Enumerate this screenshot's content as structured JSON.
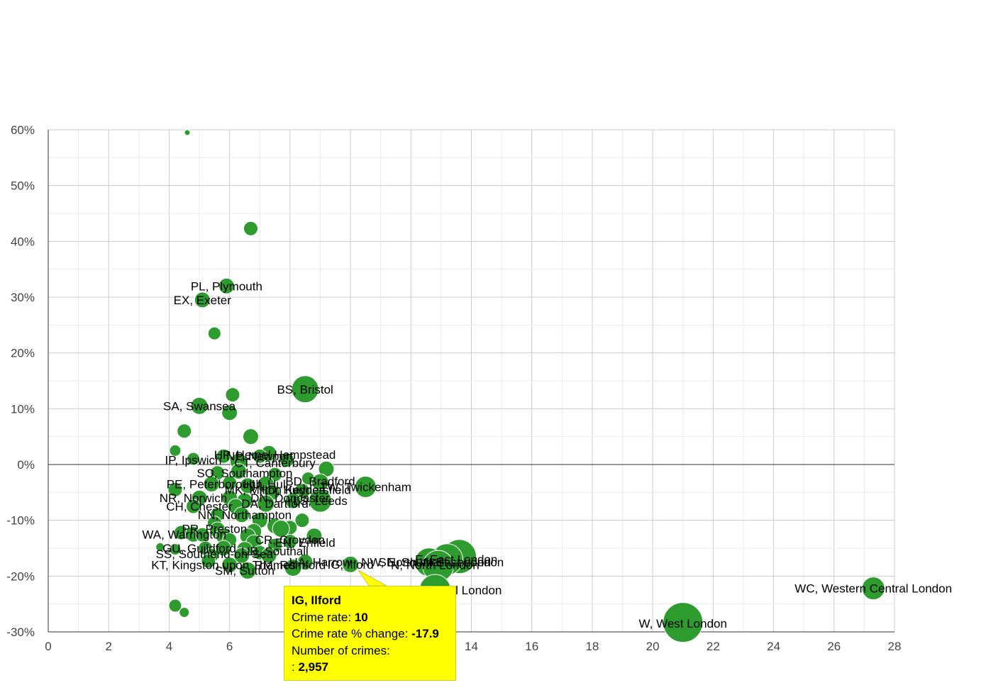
{
  "chart_data": {
    "type": "scatter",
    "title": "",
    "xlabel": "",
    "ylabel": "",
    "xlim": [
      0,
      28
    ],
    "ylim": [
      -30,
      60
    ],
    "x_ticks": [
      "0",
      "2",
      "4",
      "6",
      "8",
      "10",
      "12",
      "14",
      "16",
      "18",
      "20",
      "22",
      "24",
      "26",
      "28"
    ],
    "y_ticks": [
      "60%",
      "50%",
      "40%",
      "30%",
      "20%",
      "10%",
      "0%",
      "-10%",
      "-20%",
      "-30%"
    ],
    "bubble_color": "#2e9b2e",
    "labels": [
      {
        "text": "PL, Plymouth",
        "x": 5.9,
        "y": 32.0
      },
      {
        "text": "EX, Exeter",
        "x": 5.1,
        "y": 29.5
      },
      {
        "text": "BS, Bristol",
        "x": 8.5,
        "y": 13.5
      },
      {
        "text": "SA, Swansea",
        "x": 5.0,
        "y": 10.5
      },
      {
        "text": "HP, Hemel Hempstead",
        "x": 7.5,
        "y": 1.8
      },
      {
        "text": "NP, Newport",
        "x": 7.0,
        "y": 1.5
      },
      {
        "text": "IP, Ipswich",
        "x": 4.8,
        "y": 0.8
      },
      {
        "text": "CT, Canterbury",
        "x": 7.5,
        "y": 0.3
      },
      {
        "text": "SO, Southampton",
        "x": 6.5,
        "y": -1.5
      },
      {
        "text": "BD, Bradford",
        "x": 9.0,
        "y": -3.0
      },
      {
        "text": "PE, Peterborough",
        "x": 5.5,
        "y": -3.5
      },
      {
        "text": "HU, Hull",
        "x": 7.2,
        "y": -3.5
      },
      {
        "text": "MK, Milton Keynes",
        "x": 7.5,
        "y": -4.5
      },
      {
        "text": "TW, Twickenham",
        "x": 10.5,
        "y": -4.0
      },
      {
        "text": "HD, Huddersfield",
        "x": 8.5,
        "y": -4.5
      },
      {
        "text": "NR, Norwich",
        "x": 4.8,
        "y": -6.0
      },
      {
        "text": "CH, Chester",
        "x": 5.0,
        "y": -7.5
      },
      {
        "text": "DA, Dartford",
        "x": 7.5,
        "y": -7.0
      },
      {
        "text": "LS, Leeds",
        "x": 9.0,
        "y": -6.5
      },
      {
        "text": "DN, Doncaster",
        "x": 8.0,
        "y": -6.0
      },
      {
        "text": "NN, Northampton",
        "x": 6.5,
        "y": -9.0
      },
      {
        "text": "PR, Preston",
        "x": 5.5,
        "y": -11.5
      },
      {
        "text": "WA, Warrington",
        "x": 4.5,
        "y": -12.5
      },
      {
        "text": "CR, Croydon",
        "x": 8.0,
        "y": -13.5
      },
      {
        "text": "EN, Enfield",
        "x": 8.5,
        "y": -14.0
      },
      {
        "text": "GU, Guildford",
        "x": 5.0,
        "y": -15.0
      },
      {
        "text": "UB, Southall",
        "x": 7.5,
        "y": -15.5
      },
      {
        "text": "SS, Southend-on-Sea",
        "x": 5.5,
        "y": -16.0
      },
      {
        "text": "E, East London",
        "x": 13.5,
        "y": -17.0
      },
      {
        "text": "NW, North West London",
        "x": 12.5,
        "y": -17.5
      },
      {
        "text": "SE, South East London",
        "x": 13.0,
        "y": -17.5
      },
      {
        "text": "N, North London",
        "x": 12.8,
        "y": -18.0
      },
      {
        "text": "RM, Romford",
        "x": 8.0,
        "y": -18.0
      },
      {
        "text": "HA, Harrow",
        "x": 9.0,
        "y": -17.5
      },
      {
        "text": "IG, Ilford",
        "x": 10.0,
        "y": -17.9
      },
      {
        "text": "KT, Kingston upon Thames",
        "x": 5.8,
        "y": -18.0
      },
      {
        "text": "SM, Sutton",
        "x": 6.5,
        "y": -19.0
      },
      {
        "text": "EC, East Central London",
        "x": 12.8,
        "y": -22.5
      },
      {
        "text": "WC, Western Central London",
        "x": 27.3,
        "y": -22.2
      },
      {
        "text": "W, West London",
        "x": 21.0,
        "y": -28.5
      }
    ],
    "bubbles": [
      {
        "x": 4.6,
        "y": 59.5,
        "r": 4
      },
      {
        "x": 6.7,
        "y": 42.3,
        "r": 10
      },
      {
        "x": 5.9,
        "y": 32.0,
        "r": 11
      },
      {
        "x": 5.1,
        "y": 29.5,
        "r": 11
      },
      {
        "x": 5.5,
        "y": 23.5,
        "r": 9
      },
      {
        "x": 8.5,
        "y": 13.5,
        "r": 19
      },
      {
        "x": 6.1,
        "y": 12.5,
        "r": 10
      },
      {
        "x": 5.0,
        "y": 10.5,
        "r": 12
      },
      {
        "x": 6.0,
        "y": 9.3,
        "r": 11
      },
      {
        "x": 4.5,
        "y": 6.0,
        "r": 10
      },
      {
        "x": 6.7,
        "y": 5.0,
        "r": 11
      },
      {
        "x": 4.2,
        "y": 2.5,
        "r": 8
      },
      {
        "x": 4.8,
        "y": 1.0,
        "r": 9
      },
      {
        "x": 5.8,
        "y": 1.5,
        "r": 10
      },
      {
        "x": 7.3,
        "y": 2.0,
        "r": 11
      },
      {
        "x": 7.0,
        "y": 1.5,
        "r": 10
      },
      {
        "x": 6.3,
        "y": 0.5,
        "r": 12
      },
      {
        "x": 7.9,
        "y": 0.8,
        "r": 10
      },
      {
        "x": 9.2,
        "y": -0.8,
        "r": 11
      },
      {
        "x": 6.3,
        "y": -1.2,
        "r": 11
      },
      {
        "x": 5.6,
        "y": -1.5,
        "r": 10
      },
      {
        "x": 7.5,
        "y": -1.8,
        "r": 10
      },
      {
        "x": 8.6,
        "y": -2.5,
        "r": 9
      },
      {
        "x": 9.0,
        "y": -3.2,
        "r": 12
      },
      {
        "x": 5.4,
        "y": -3.5,
        "r": 11
      },
      {
        "x": 6.0,
        "y": -3.3,
        "r": 10
      },
      {
        "x": 6.6,
        "y": -3.8,
        "r": 11
      },
      {
        "x": 7.2,
        "y": -3.6,
        "r": 12
      },
      {
        "x": 10.5,
        "y": -4.0,
        "r": 15
      },
      {
        "x": 4.2,
        "y": -4.5,
        "r": 10
      },
      {
        "x": 7.4,
        "y": -5.0,
        "r": 11
      },
      {
        "x": 8.4,
        "y": -4.8,
        "r": 11
      },
      {
        "x": 5.0,
        "y": -6.0,
        "r": 11
      },
      {
        "x": 6.0,
        "y": -6.0,
        "r": 11
      },
      {
        "x": 6.5,
        "y": -6.5,
        "r": 11
      },
      {
        "x": 8.1,
        "y": -6.5,
        "r": 11
      },
      {
        "x": 9.0,
        "y": -6.5,
        "r": 16
      },
      {
        "x": 4.8,
        "y": -7.5,
        "r": 10
      },
      {
        "x": 7.2,
        "y": -7.0,
        "r": 12
      },
      {
        "x": 6.2,
        "y": -7.5,
        "r": 11
      },
      {
        "x": 5.6,
        "y": -9.0,
        "r": 10
      },
      {
        "x": 6.4,
        "y": -9.0,
        "r": 11
      },
      {
        "x": 7.0,
        "y": -10.0,
        "r": 11
      },
      {
        "x": 8.4,
        "y": -10.0,
        "r": 10
      },
      {
        "x": 5.5,
        "y": -10.5,
        "r": 10
      },
      {
        "x": 7.5,
        "y": -11.0,
        "r": 11
      },
      {
        "x": 8.0,
        "y": -11.3,
        "r": 10
      },
      {
        "x": 5.6,
        "y": -11.7,
        "r": 11
      },
      {
        "x": 7.7,
        "y": -11.5,
        "r": 12
      },
      {
        "x": 6.8,
        "y": -12.0,
        "r": 11
      },
      {
        "x": 4.4,
        "y": -12.2,
        "r": 10
      },
      {
        "x": 4.8,
        "y": -12.5,
        "r": 11
      },
      {
        "x": 5.1,
        "y": -12.6,
        "r": 10
      },
      {
        "x": 5.8,
        "y": -12.8,
        "r": 11
      },
      {
        "x": 6.6,
        "y": -12.8,
        "r": 11
      },
      {
        "x": 8.8,
        "y": -12.8,
        "r": 11
      },
      {
        "x": 8.0,
        "y": -13.8,
        "r": 10
      },
      {
        "x": 6.0,
        "y": -13.5,
        "r": 10
      },
      {
        "x": 6.8,
        "y": -14.0,
        "r": 11
      },
      {
        "x": 7.5,
        "y": -14.5,
        "r": 10
      },
      {
        "x": 3.7,
        "y": -14.8,
        "r": 6
      },
      {
        "x": 4.2,
        "y": -15.2,
        "r": 8
      },
      {
        "x": 5.2,
        "y": -15.0,
        "r": 10
      },
      {
        "x": 5.8,
        "y": -15.0,
        "r": 11
      },
      {
        "x": 6.5,
        "y": -15.2,
        "r": 11
      },
      {
        "x": 7.0,
        "y": -15.8,
        "r": 10
      },
      {
        "x": 5.4,
        "y": -16.3,
        "r": 10
      },
      {
        "x": 6.4,
        "y": -16.3,
        "r": 11
      },
      {
        "x": 7.3,
        "y": -16.3,
        "r": 11
      },
      {
        "x": 5.3,
        "y": -17.3,
        "r": 10
      },
      {
        "x": 8.5,
        "y": -17.5,
        "r": 11
      },
      {
        "x": 10.0,
        "y": -17.9,
        "r": 12
      },
      {
        "x": 6.0,
        "y": -18.0,
        "r": 11
      },
      {
        "x": 8.1,
        "y": -18.5,
        "r": 12
      },
      {
        "x": 6.6,
        "y": -19.0,
        "r": 12
      },
      {
        "x": 13.6,
        "y": -16.5,
        "r": 24
      },
      {
        "x": 13.2,
        "y": -17.0,
        "r": 22
      },
      {
        "x": 12.6,
        "y": -17.5,
        "r": 20
      },
      {
        "x": 12.9,
        "y": -18.2,
        "r": 22
      },
      {
        "x": 12.8,
        "y": -22.5,
        "r": 22
      },
      {
        "x": 27.3,
        "y": -22.2,
        "r": 16
      },
      {
        "x": 4.2,
        "y": -25.3,
        "r": 9
      },
      {
        "x": 4.5,
        "y": -26.5,
        "r": 7
      },
      {
        "x": 21.0,
        "y": -28.3,
        "r": 28
      }
    ]
  },
  "tooltip": {
    "title": "IG, Ilford",
    "rate_label": "Crime rate:",
    "rate_value": "10",
    "change_label": "Crime rate % change:",
    "change_value": "-17.9",
    "count_label": "Number of crimes:",
    "count_prefix": ":",
    "count_value": "2,957"
  }
}
